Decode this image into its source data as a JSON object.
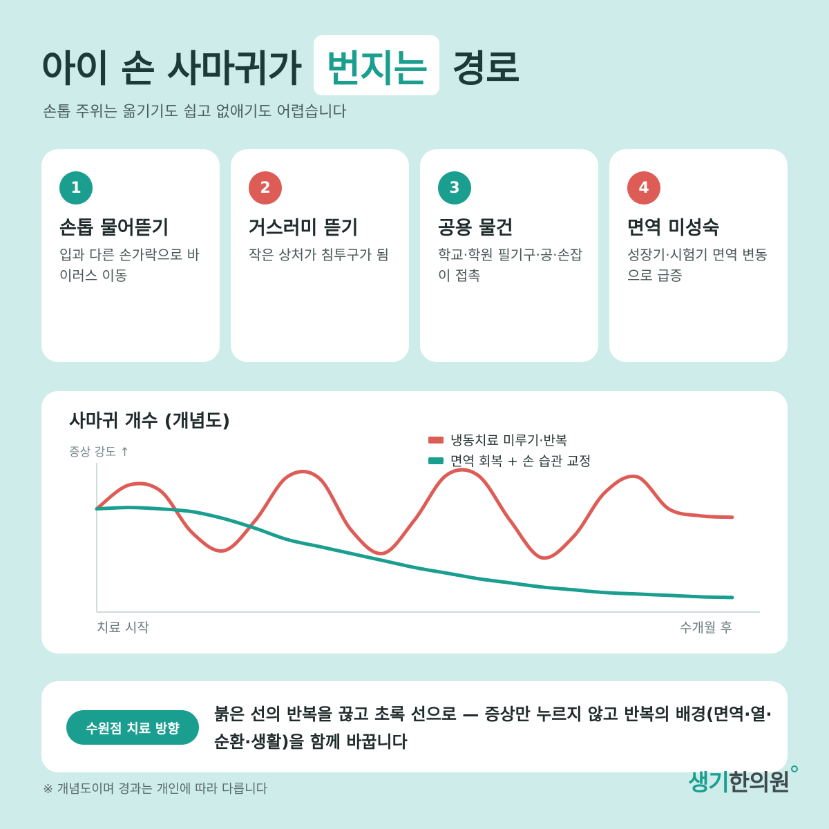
{
  "header": {
    "title_pre": "아이 손 사마귀가",
    "title_highlight": "번지는",
    "title_post": "경로",
    "subtitle": "손톱 주위는 옮기기도 쉽고 없애기도 어렵습니다"
  },
  "cards": [
    {
      "number": "1",
      "title": "손톱 물어뜯기",
      "desc": "입과 다른 손가락으로 바이러스 이동",
      "color": "#1a9e8f"
    },
    {
      "number": "2",
      "title": "거스러미 뜯기",
      "desc": "작은 상처가 침투구가 됨",
      "color": "#dd5c56"
    },
    {
      "number": "3",
      "title": "공용 물건",
      "desc": "학교·학원 필기구·공·손잡이 접촉",
      "color": "#1a9e8f"
    },
    {
      "number": "4",
      "title": "면역 미성숙",
      "desc": "성장기·시험기 면역 변동으로 급증",
      "color": "#dd5c56"
    }
  ],
  "chart_data": {
    "type": "line",
    "title": "사마귀 개수 (개념도)",
    "ylabel": "증상 강도 ↑",
    "xlabel_start": "치료 시작",
    "xlabel_end": "수개월 후",
    "legend_position": "top-right",
    "x": [
      0,
      0.05,
      0.1,
      0.15,
      0.2,
      0.25,
      0.3,
      0.35,
      0.4,
      0.45,
      0.5,
      0.55,
      0.6,
      0.65,
      0.7,
      0.75,
      0.8,
      0.85,
      0.9,
      0.95,
      1.0
    ],
    "ylim": [
      0,
      1
    ],
    "series": [
      {
        "name": "냉동치료 미루기·반복",
        "color": "#dd5c56",
        "values": [
          0.7,
          0.87,
          0.83,
          0.53,
          0.4,
          0.62,
          0.93,
          0.92,
          0.55,
          0.38,
          0.62,
          0.94,
          0.94,
          0.62,
          0.35,
          0.5,
          0.82,
          0.93,
          0.7,
          0.65,
          0.64
        ]
      },
      {
        "name": "면역 회복 + 손 습관 교정",
        "color": "#1a9e8f",
        "values": [
          0.7,
          0.71,
          0.7,
          0.68,
          0.63,
          0.56,
          0.48,
          0.43,
          0.38,
          0.33,
          0.28,
          0.24,
          0.2,
          0.17,
          0.14,
          0.12,
          0.1,
          0.09,
          0.08,
          0.07,
          0.065
        ]
      }
    ]
  },
  "bottom": {
    "badge": "수원점 치료 방향",
    "text": "붉은 선의 반복을 끊고 초록 선으로 — 증상만 누르지 않고 반복의 배경(면역·열·순환·생활)을 함께 바꿉니다"
  },
  "footnote": "※ 개념도이며 경과는 개인에 따라 다릅니다",
  "brand": {
    "part1": "생기",
    "part2": "한의원"
  }
}
